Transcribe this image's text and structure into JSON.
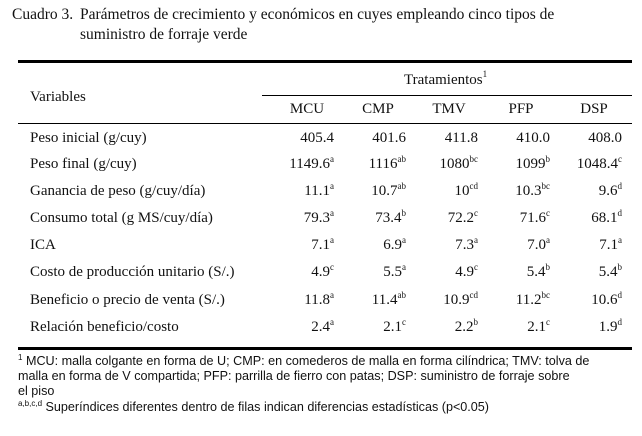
{
  "caption": {
    "label": "Cuadro 3.",
    "line1": "Parámetros de crecimiento y económicos en cuyes empleando cinco tipos de",
    "line2": "suministro de forraje verde"
  },
  "table": {
    "variables_header": "Variables",
    "tratamientos_header": "Tratamientos",
    "tratamientos_sup": "1",
    "columns": [
      "MCU",
      "CMP",
      "TMV",
      "PFP",
      "DSP"
    ],
    "rows": [
      {
        "label": "Peso inicial (g/cuy)",
        "values": [
          {
            "v": "405.4",
            "s": ""
          },
          {
            "v": "401.6",
            "s": ""
          },
          {
            "v": "411.8",
            "s": ""
          },
          {
            "v": "410.0",
            "s": ""
          },
          {
            "v": "408.0",
            "s": ""
          }
        ]
      },
      {
        "label": "Peso final (g/cuy)",
        "values": [
          {
            "v": "1149.6",
            "s": "a"
          },
          {
            "v": "1116",
            "s": "ab"
          },
          {
            "v": "1080",
            "s": "bc"
          },
          {
            "v": "1099",
            "s": "b"
          },
          {
            "v": "1048.4",
            "s": "c"
          }
        ]
      },
      {
        "label": "Ganancia de peso (g/cuy/día)",
        "values": [
          {
            "v": "11.1",
            "s": "a"
          },
          {
            "v": "10.7",
            "s": "ab"
          },
          {
            "v": "10",
            "s": "cd"
          },
          {
            "v": "10.3",
            "s": "bc"
          },
          {
            "v": "9.6",
            "s": "d"
          }
        ]
      },
      {
        "label": "Consumo total (g MS/cuy/día)",
        "values": [
          {
            "v": "79.3",
            "s": "a"
          },
          {
            "v": "73.4",
            "s": "b"
          },
          {
            "v": "72.2",
            "s": "c"
          },
          {
            "v": "71.6",
            "s": "c"
          },
          {
            "v": "68.1",
            "s": "d"
          }
        ]
      },
      {
        "label": "ICA",
        "values": [
          {
            "v": "7.1",
            "s": "a"
          },
          {
            "v": "6.9",
            "s": "a"
          },
          {
            "v": "7.3",
            "s": "a"
          },
          {
            "v": "7.0",
            "s": "a"
          },
          {
            "v": "7.1",
            "s": "a"
          }
        ]
      },
      {
        "label": "Costo de producción unitario (S/.)",
        "values": [
          {
            "v": "4.9",
            "s": "c"
          },
          {
            "v": "5.5",
            "s": "a"
          },
          {
            "v": "4.9",
            "s": "c"
          },
          {
            "v": "5.4",
            "s": "b"
          },
          {
            "v": "5.4",
            "s": "b"
          }
        ]
      },
      {
        "label": "Beneficio o precio de venta (S/.)",
        "values": [
          {
            "v": "11.8",
            "s": "a"
          },
          {
            "v": "11.4",
            "s": "ab"
          },
          {
            "v": "10.9",
            "s": "cd"
          },
          {
            "v": "11.2",
            "s": "bc"
          },
          {
            "v": "10.6",
            "s": "d"
          }
        ]
      },
      {
        "label": "Relación beneficio/costo",
        "values": [
          {
            "v": "2.4",
            "s": "a"
          },
          {
            "v": "2.1",
            "s": "c"
          },
          {
            "v": "2.2",
            "s": "b"
          },
          {
            "v": "2.1",
            "s": "c"
          },
          {
            "v": "1.9",
            "s": "d"
          }
        ]
      }
    ]
  },
  "footnotes": {
    "note1_sup": "1",
    "note1_line1": "MCU: malla colgante en forma de U; CMP: en comederos de malla en forma cilíndrica; TMV: tolva de",
    "note1_line2": "malla en forma de V compartida; PFP: parrilla de fierro con patas; DSP: suministro de forraje sobre",
    "note1_line3": "el piso",
    "note2_sup": "a,b,c,d",
    "note2_text": "Superíndices diferentes dentro de filas indican diferencias estadísticas (p<0.05)"
  }
}
